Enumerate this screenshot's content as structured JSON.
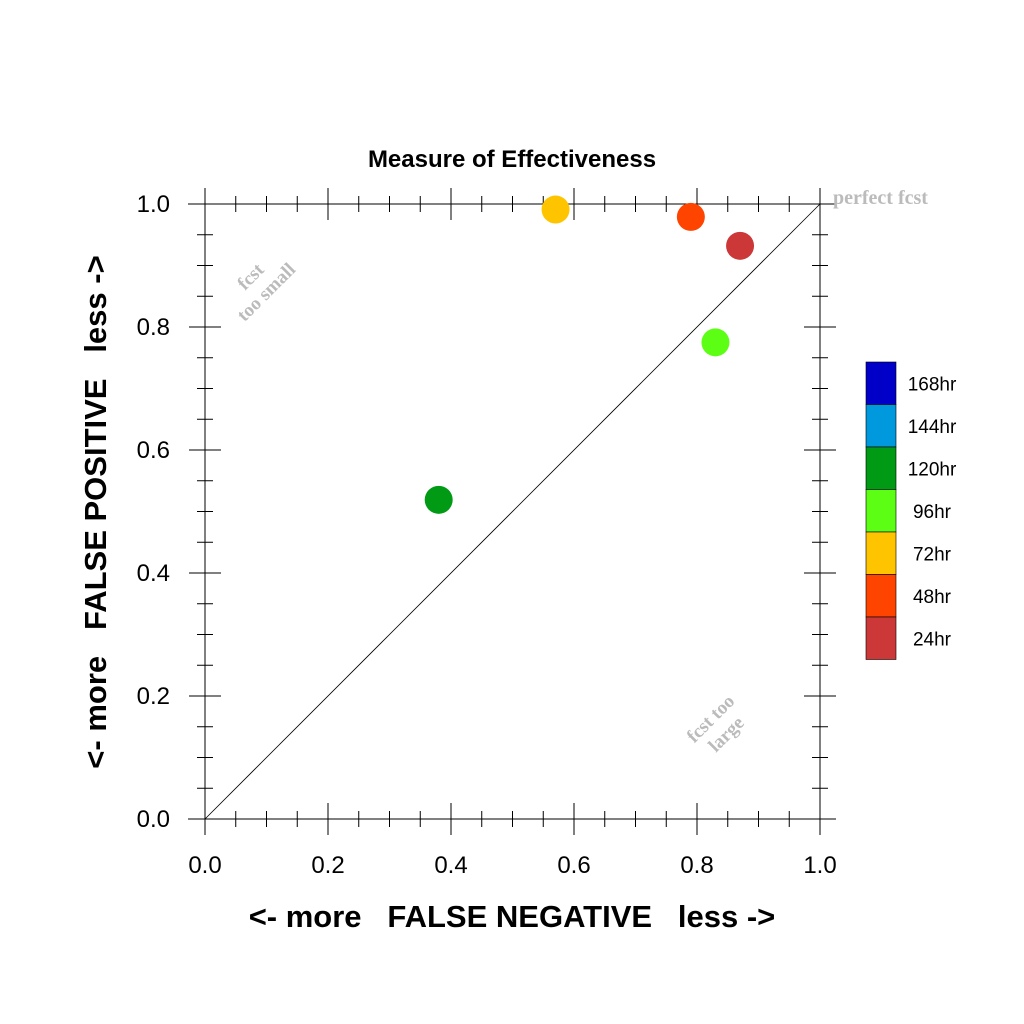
{
  "chart_data": {
    "type": "scatter",
    "title": "Measure of Effectiveness",
    "xlabel": "<- more   FALSE NEGATIVE   less ->",
    "ylabel": "<- more   FALSE POSITIVE   less ->",
    "xlim": [
      0.0,
      1.0
    ],
    "ylim": [
      0.0,
      1.0
    ],
    "x_ticks": [
      "0.0",
      "0.2",
      "0.4",
      "0.6",
      "0.8",
      "1.0"
    ],
    "y_ticks": [
      "0.0",
      "0.2",
      "0.4",
      "0.6",
      "0.8",
      "1.0"
    ],
    "grid": false,
    "diagonal_line": true,
    "annotations": {
      "perfect": "perfect fcst",
      "too_small_1": "fcst",
      "too_small_2": "too small",
      "too_large_1": "fcst too",
      "too_large_2": "large"
    },
    "legend_position": "right",
    "legend": [
      {
        "label": "168hr",
        "color": "#0000c8"
      },
      {
        "label": "144hr",
        "color": "#0099dd"
      },
      {
        "label": "120hr",
        "color": "#009a14"
      },
      {
        "label": "96hr",
        "color": "#5cff14"
      },
      {
        "label": "72hr",
        "color": "#ffc400"
      },
      {
        "label": "48hr",
        "color": "#ff4400"
      },
      {
        "label": "24hr",
        "color": "#cc3838"
      }
    ],
    "points": [
      {
        "label": "24hr",
        "x": 0.87,
        "y": 0.932,
        "color": "#cc3838"
      },
      {
        "label": "48hr",
        "x": 0.79,
        "y": 0.979,
        "color": "#ff4400"
      },
      {
        "label": "72hr",
        "x": 0.57,
        "y": 0.991,
        "color": "#ffc400"
      },
      {
        "label": "96hr",
        "x": 0.83,
        "y": 0.775,
        "color": "#5cff14"
      },
      {
        "label": "120hr",
        "x": 0.38,
        "y": 0.519,
        "color": "#009a14"
      }
    ]
  }
}
